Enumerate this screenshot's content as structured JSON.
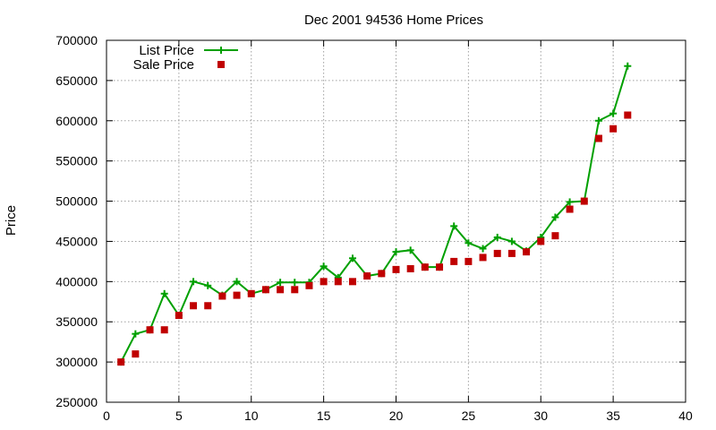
{
  "chart_data": {
    "type": "line",
    "title": "Dec 2001 94536 Home Prices",
    "xlabel": "",
    "ylabel": "Price",
    "xlim": [
      0,
      40
    ],
    "ylim": [
      250000,
      700000
    ],
    "xticks": [
      0,
      5,
      10,
      15,
      20,
      25,
      30,
      35,
      40
    ],
    "yticks": [
      250000,
      300000,
      350000,
      400000,
      450000,
      500000,
      550000,
      600000,
      650000,
      700000
    ],
    "grid": true,
    "legend_position": "top-left",
    "series": [
      {
        "name": "List Price",
        "style": "line-with-plus-markers",
        "color": "#00a000",
        "points": [
          [
            1,
            300000
          ],
          [
            2,
            335000
          ],
          [
            3,
            340000
          ],
          [
            4,
            385000
          ],
          [
            5,
            358000
          ],
          [
            6,
            400000
          ],
          [
            7,
            395000
          ],
          [
            8,
            383000
          ],
          [
            9,
            400000
          ],
          [
            10,
            385000
          ],
          [
            11,
            390000
          ],
          [
            12,
            399000
          ],
          [
            13,
            399000
          ],
          [
            14,
            399000
          ],
          [
            15,
            419000
          ],
          [
            16,
            405000
          ],
          [
            17,
            429000
          ],
          [
            18,
            407000
          ],
          [
            19,
            410000
          ],
          [
            20,
            437000
          ],
          [
            21,
            439000
          ],
          [
            22,
            418000
          ],
          [
            23,
            418000
          ],
          [
            24,
            469000
          ],
          [
            25,
            448000
          ],
          [
            26,
            441000
          ],
          [
            27,
            455000
          ],
          [
            28,
            450000
          ],
          [
            29,
            438000
          ],
          [
            30,
            455000
          ],
          [
            31,
            480000
          ],
          [
            32,
            499000
          ],
          [
            33,
            500000
          ],
          [
            34,
            600000
          ],
          [
            35,
            609000
          ],
          [
            36,
            668000
          ]
        ]
      },
      {
        "name": "Sale Price",
        "style": "square-markers",
        "color": "#c00000",
        "points": [
          [
            1,
            300000
          ],
          [
            2,
            310000
          ],
          [
            3,
            340000
          ],
          [
            4,
            340000
          ],
          [
            5,
            358000
          ],
          [
            6,
            370000
          ],
          [
            7,
            370000
          ],
          [
            8,
            382000
          ],
          [
            9,
            383000
          ],
          [
            10,
            385000
          ],
          [
            11,
            390000
          ],
          [
            12,
            390000
          ],
          [
            13,
            390000
          ],
          [
            14,
            395000
          ],
          [
            15,
            400000
          ],
          [
            16,
            400000
          ],
          [
            17,
            400000
          ],
          [
            18,
            407000
          ],
          [
            19,
            410000
          ],
          [
            20,
            415000
          ],
          [
            21,
            416000
          ],
          [
            22,
            418000
          ],
          [
            23,
            418000
          ],
          [
            24,
            425000
          ],
          [
            25,
            425000
          ],
          [
            26,
            430000
          ],
          [
            27,
            435000
          ],
          [
            28,
            435000
          ],
          [
            29,
            437000
          ],
          [
            30,
            450000
          ],
          [
            31,
            457000
          ],
          [
            32,
            490000
          ],
          [
            33,
            500000
          ],
          [
            34,
            578000
          ],
          [
            35,
            590000
          ],
          [
            36,
            607000
          ]
        ]
      }
    ]
  }
}
